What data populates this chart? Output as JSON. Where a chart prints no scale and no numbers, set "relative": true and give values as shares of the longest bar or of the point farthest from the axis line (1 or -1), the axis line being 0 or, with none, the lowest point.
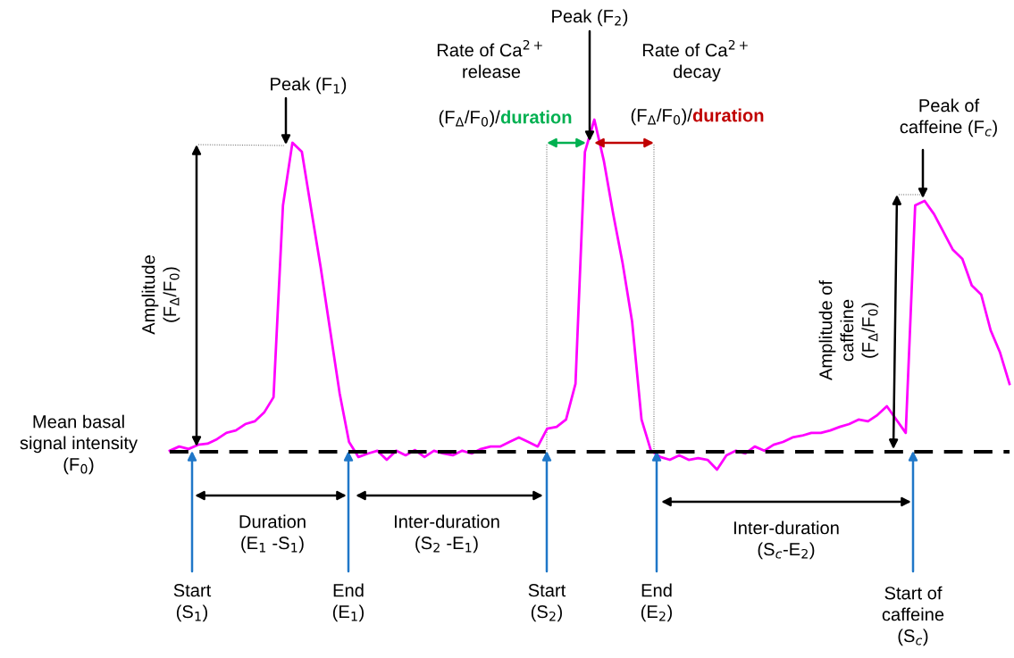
{
  "chart_data": {
    "type": "line",
    "relative": true,
    "legend": false,
    "marker": "none",
    "ref_lines": [
      {
        "axis": "y",
        "value": 0.051,
        "color": "#000000",
        "line_style": "dashed"
      }
    ],
    "categories": [
      null,
      null,
      null,
      null,
      null,
      null,
      null,
      null,
      null,
      null,
      null,
      null,
      null,
      null,
      null,
      null,
      null,
      null,
      null,
      null,
      null,
      null,
      null,
      null,
      null,
      null,
      null,
      null,
      null,
      null,
      null,
      null,
      null,
      null,
      null,
      null,
      null,
      null,
      null,
      null,
      null,
      null,
      null,
      null,
      null,
      null,
      null,
      null,
      null,
      null,
      null,
      null,
      null,
      null,
      null,
      null,
      null,
      null,
      null,
      null,
      null,
      null,
      null,
      null,
      null,
      null,
      null,
      null,
      null,
      null,
      null,
      null,
      null,
      null,
      null,
      null,
      null,
      null,
      null,
      null,
      null,
      null,
      null,
      null,
      null,
      null,
      null,
      null,
      null,
      null
    ],
    "series": [
      {
        "color": "#ff00ff",
        "values": [
          0.054,
          0.066,
          0.059,
          0.071,
          0.074,
          0.087,
          0.105,
          0.112,
          0.13,
          0.138,
          0.163,
          0.207,
          0.755,
          0.934,
          0.908,
          0.742,
          0.577,
          0.398,
          0.219,
          0.079,
          0.036,
          0.046,
          0.054,
          0.028,
          0.054,
          0.041,
          0.056,
          0.036,
          0.054,
          0.046,
          0.041,
          0.054,
          0.046,
          0.059,
          0.066,
          0.066,
          0.079,
          0.092,
          0.079,
          0.066,
          0.117,
          0.122,
          0.143,
          0.245,
          0.908,
          1,
          0.883,
          0.73,
          0.589,
          0.423,
          0.143,
          0.054,
          0.036,
          0.028,
          0.041,
          0.028,
          0.033,
          0.028,
          0,
          0.041,
          0.054,
          0.046,
          0.066,
          0.054,
          0.071,
          0.079,
          0.092,
          0.097,
          0.105,
          0.105,
          0.112,
          0.122,
          0.13,
          0.143,
          0.138,
          0.156,
          0.181,
          0.143,
          0.105,
          0.755,
          0.768,
          0.73,
          0.679,
          0.628,
          0.602,
          0.526,
          0.5,
          0.398,
          0.334,
          0.245
        ]
      }
    ],
    "annotations": [
      "Peak (F$_{1}$)",
      "Peak (F$_{2}$)",
      "Rate of Ca$^{2+}$\nrelease",
      "(F$_{Δ}$/F$_{0}$)/",
      "duration",
      "Rate of Ca$^{2+}$\ndecay",
      "(F$_{Δ}$/F$_{0}$)/",
      "duration",
      "Peak of\ncaffeine (F$_{c}$)",
      "Amplitude\n(F$_{Δ}$/F$_{0}$)",
      "Amplitude of\ncaffeine\n(F$_{Δ}$/F$_{0}$)",
      "Mean basal\nsignal intensity\n(F$_{0}$)",
      "Start\n(S$_{1}$)",
      "End\n(E$_{1}$)",
      "Start\n(S$_{2}$)",
      "End\n(E$_{2}$)",
      "Start of\ncaffeine\n(S$_{c}$)",
      "Duration\n(E$_{1}$ -S$_{1}$)",
      "Inter-duration\n(S$_{2}$ -E$_{1}$)",
      "Inter-duration\n(S$_{c}$-E$_{2}$)"
    ]
  }
}
